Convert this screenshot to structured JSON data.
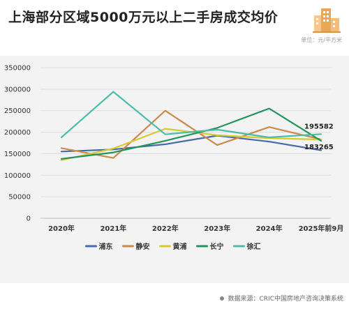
{
  "header": {
    "title": "上海部分区域5000万元以上二手房成交均价",
    "unit": "单位：元/平方米"
  },
  "footer": {
    "source": "数据来源：CRIC中国房地产咨询决策系统"
  },
  "colors": {
    "panel": "#f3f3f3",
    "accent": "#e8a857"
  },
  "chart_data": {
    "type": "line",
    "title": "上海部分区域5000万元以上二手房成交均价",
    "xlabel": "",
    "ylabel": "",
    "categories": [
      "2020年",
      "2021年",
      "2022年",
      "2023年",
      "2024年",
      "2025年前9月"
    ],
    "ylim": [
      0,
      350000
    ],
    "yticks": [
      0,
      50000,
      100000,
      150000,
      200000,
      250000,
      300000,
      350000
    ],
    "grid": true,
    "legend_position": "bottom",
    "series": [
      {
        "name": "浦东",
        "color": "#4a69a8",
        "values": [
          155000,
          160000,
          172000,
          192000,
          178000,
          158000
        ]
      },
      {
        "name": "静安",
        "color": "#cc8a4a",
        "values": [
          163000,
          140000,
          250000,
          170000,
          212000,
          183265
        ]
      },
      {
        "name": "黄浦",
        "color": "#d8c832",
        "values": [
          135000,
          162000,
          208000,
          193000,
          186000,
          183000
        ]
      },
      {
        "name": "长宁",
        "color": "#24945e",
        "values": [
          138000,
          153000,
          180000,
          210000,
          255000,
          180000
        ]
      },
      {
        "name": "徐汇",
        "color": "#4cbca8",
        "values": [
          188000,
          294000,
          195000,
          206000,
          188000,
          195582
        ]
      }
    ],
    "annotations": [
      {
        "text": "195582",
        "category": "2025年前9月",
        "value": 195582
      },
      {
        "text": "183265",
        "category": "2025年前9月",
        "value": 183265
      }
    ]
  }
}
